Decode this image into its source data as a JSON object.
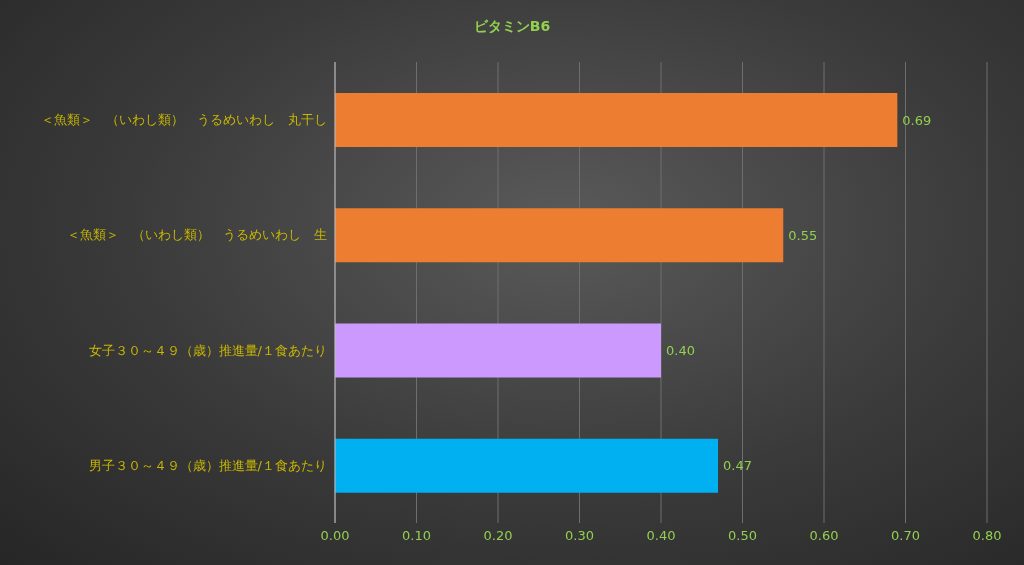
{
  "chart_data": {
    "type": "bar",
    "orientation": "horizontal",
    "title": "ビタミンB6",
    "categories": [
      "＜魚類＞　（いわし類）　うるめいわし　丸干し",
      "＜魚類＞　（いわし類）　うるめいわし　生",
      "女子３０～４９（歳）推進量/１食あたり",
      "男子３０～４９（歳）推進量/１食あたり"
    ],
    "values": [
      0.69,
      0.55,
      0.4,
      0.47
    ],
    "value_labels": [
      "0.69",
      "0.55",
      "0.40",
      "0.47"
    ],
    "colors": [
      "#ed7d31",
      "#ed7d31",
      "#cc99ff",
      "#00b0f0"
    ],
    "xlim": [
      0,
      0.8
    ],
    "xticks": [
      {
        "value": 0,
        "label": "0.00"
      },
      {
        "value": 0.1,
        "label": "0.10"
      },
      {
        "value": 0.2,
        "label": "0.20"
      },
      {
        "value": 0.3,
        "label": "0.30"
      },
      {
        "value": 0.4,
        "label": "0.40"
      },
      {
        "value": 0.5,
        "label": "0.50"
      },
      {
        "value": 0.6,
        "label": "0.60"
      },
      {
        "value": 0.7,
        "label": "0.70"
      },
      {
        "value": 0.8,
        "label": "0.80"
      }
    ],
    "grid": "x",
    "legend": false
  }
}
